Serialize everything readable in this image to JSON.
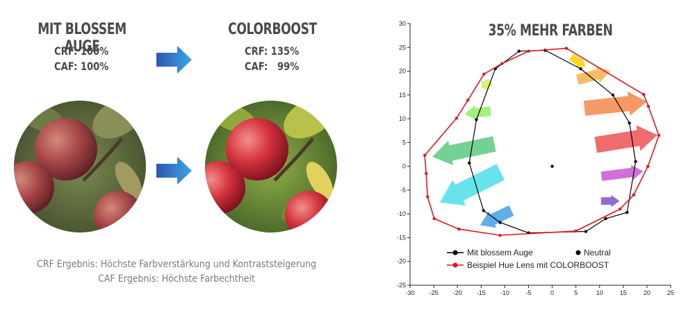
{
  "left": {
    "before": {
      "title": "MIT BLOSSEM AUGE",
      "crf": "CRF: 100%",
      "caf": "CAF: 100%"
    },
    "after": {
      "title": "COLORBOOST",
      "crf": "CRF: 135%",
      "caf": "CAF:   99%"
    },
    "caption_line1": "CRF Ergebnis: Höchste Farbverstärkung und Kontraststeigerung",
    "caption_line2": "CAF Ergebnis: Höchste Farbechtheit",
    "icons": [
      "arrow-right-icon",
      "arrow-right-icon",
      "apple-photo-natural",
      "apple-photo-boosted"
    ],
    "colors": {
      "heading": "#4a4a4a",
      "caption": "#7a7a7a",
      "arrow_start": "#2f56b0",
      "arrow_end": "#3aa6e6"
    }
  },
  "chart_data": {
    "type": "line",
    "title": "35% MEHR FARBEN",
    "xlim": [
      -30,
      25
    ],
    "ylim": [
      -25,
      30
    ],
    "x_ticks": [
      -30,
      -25,
      -20,
      -15,
      -10,
      -5,
      0,
      5,
      10,
      15,
      20,
      25
    ],
    "y_ticks": [
      30,
      25,
      20,
      15,
      10,
      5,
      0,
      -5,
      -10,
      -15,
      -20,
      -25
    ],
    "grid": false,
    "legend_position": "bottom-center",
    "series": [
      {
        "name": "Mit blossem Auge",
        "color": "#000000",
        "points": [
          [
            -7,
            24.2
          ],
          [
            -1.5,
            24.4
          ],
          [
            6,
            20.5
          ],
          [
            12.8,
            15
          ],
          [
            16.3,
            9.1
          ],
          [
            17.6,
            1
          ],
          [
            15.8,
            -9.7
          ],
          [
            11.3,
            -11
          ],
          [
            7.1,
            -13.7
          ],
          [
            -5,
            -14
          ],
          [
            -11,
            -11.8
          ],
          [
            -14.5,
            -9.3
          ],
          [
            -17.5,
            0.7
          ],
          [
            -16,
            9.8
          ],
          [
            -12,
            20.5
          ],
          [
            -7,
            24.2
          ]
        ]
      },
      {
        "name": "Beispiel Hue Lens mit COLORBOOST",
        "color": "#e0161f",
        "points": [
          [
            -5,
            24.2
          ],
          [
            3,
            24.8
          ],
          [
            19.3,
            15.1
          ],
          [
            20.3,
            12.6
          ],
          [
            22.5,
            6.5
          ],
          [
            20.2,
            0
          ],
          [
            17.2,
            -6
          ],
          [
            14.3,
            -9
          ],
          [
            5,
            -13.6
          ],
          [
            -11,
            -14.5
          ],
          [
            -19.7,
            -13.2
          ],
          [
            -24.9,
            -11
          ],
          [
            -26.3,
            -6.4
          ],
          [
            -26.6,
            -1.5
          ],
          [
            -26.9,
            2.3
          ],
          [
            -20.2,
            10.1
          ],
          [
            -17.8,
            13.9
          ],
          [
            -14.4,
            19.4
          ],
          [
            -10.6,
            21.6
          ],
          [
            -5,
            24.2
          ]
        ]
      },
      {
        "name": "Neutral",
        "color": "#000000",
        "points": [
          [
            0,
            0
          ]
        ]
      }
    ],
    "annotations": [
      {
        "type": "arrow",
        "from": [
          4,
          23
        ],
        "to": [
          7,
          21
        ],
        "color": "#f7d71b",
        "width": 1.6
      },
      {
        "type": "arrow",
        "from": [
          5.3,
          18.2
        ],
        "to": [
          12.2,
          20
        ],
        "color": "#f9b85e",
        "width": 2.2
      },
      {
        "type": "arrow",
        "from": [
          6.8,
          12.2
        ],
        "to": [
          20,
          13.6
        ],
        "color": "#f6935e",
        "width": 3.2
      },
      {
        "type": "arrow",
        "from": [
          9.2,
          4.5
        ],
        "to": [
          22.2,
          6.6
        ],
        "color": "#f06464",
        "width": 3.4
      },
      {
        "type": "arrow",
        "from": [
          10.4,
          -2.1
        ],
        "to": [
          19.2,
          -1
        ],
        "color": "#cf68d4",
        "width": 2.0
      },
      {
        "type": "arrow",
        "from": [
          10.3,
          -7.3
        ],
        "to": [
          14.2,
          -7.3
        ],
        "color": "#8a63cf",
        "width": 1.6
      },
      {
        "type": "arrow",
        "from": [
          -13,
          17.8
        ],
        "to": [
          -15,
          16.5
        ],
        "color": "#d6f067",
        "width": 1.6
      },
      {
        "type": "arrow",
        "from": [
          -13,
          11.6
        ],
        "to": [
          -18.5,
          11
        ],
        "color": "#9ef07a",
        "width": 2.0
      },
      {
        "type": "arrow",
        "from": [
          -12.2,
          4.7
        ],
        "to": [
          -25.3,
          2
        ],
        "color": "#6bcf8c",
        "width": 3.3
      },
      {
        "type": "arrow",
        "from": [
          -10.9,
          -1.2
        ],
        "to": [
          -23.7,
          -7.6
        ],
        "color": "#5fe1ec",
        "width": 3.8
      },
      {
        "type": "arrow",
        "from": [
          -8.6,
          -9.3
        ],
        "to": [
          -15.2,
          -12.4
        ],
        "color": "#56a9e9",
        "width": 2.4
      }
    ]
  }
}
